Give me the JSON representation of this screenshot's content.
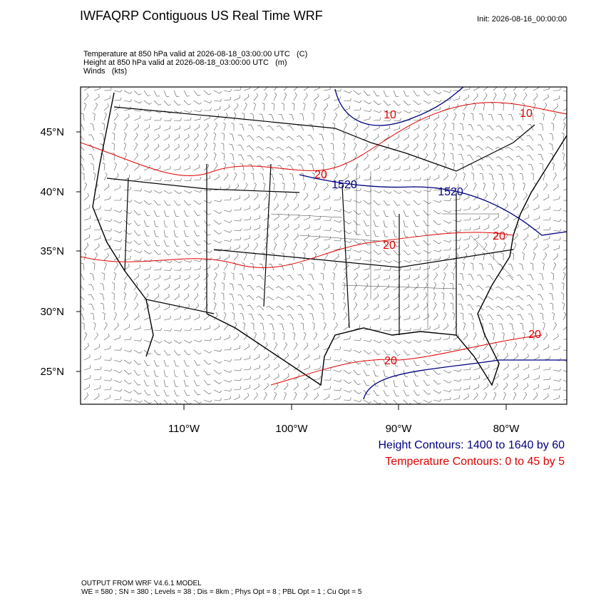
{
  "header": {
    "title": "IWFAQRP Contiguous US Real Time WRF",
    "init": "Init: 2026-08-16_00:00:00"
  },
  "fields": [
    "Temperature at 850 hPa valid at 2026-08-18_03:00:00 UTC   (C)",
    "Height at 850 hPa valid at 2026-08-18_03:00:00 UTC   (m)",
    "Winds   (kts)"
  ],
  "map": {
    "lat_labels": [
      "45°N",
      "40°N",
      "35°N",
      "30°N",
      "25°N"
    ],
    "lon_labels": [
      "110°W",
      "100°W",
      "90°W",
      "80°W"
    ],
    "contour_labels": [
      "10",
      "10",
      "1520",
      "1520",
      "20",
      "20",
      "20",
      "20",
      "20"
    ]
  },
  "legend": [
    "Height Contours: 1400 to 1640 by 60",
    "Temperature Contours: 0 to 45 by 5"
  ],
  "footer": [
    "OUTPUT FROM WRF V4.6.1 MODEL",
    "WE = 580 ; SN = 380 ; Levels = 38 ; Dis = 8km ; Phys Opt = 8 ; PBL Opt = 1 ; Cu Opt = 5"
  ]
}
